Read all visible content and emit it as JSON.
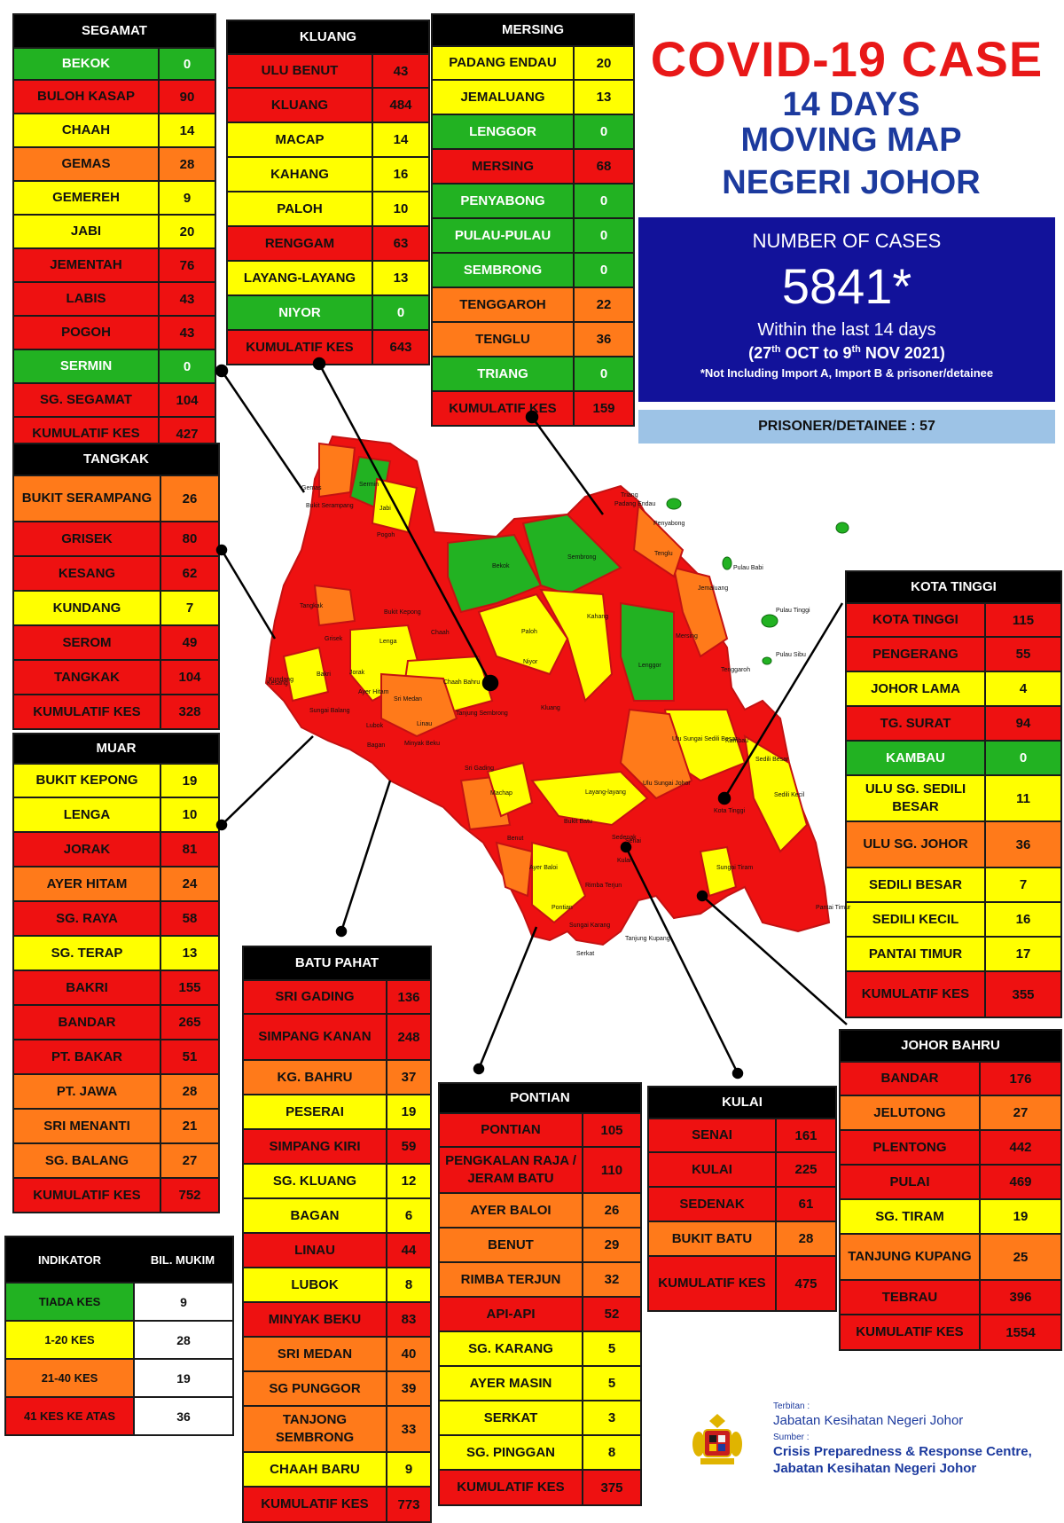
{
  "header": {
    "title": "COVID-19 CASE",
    "line1": "14 DAYS",
    "line2": "MOVING MAP",
    "line3": "NEGERI JOHOR"
  },
  "cases": {
    "label": "NUMBER OF CASES",
    "total": "5841*",
    "within": "Within the last 14 days",
    "range_open": "(27",
    "range_th1": "th",
    "range_mid": " OCT to 9",
    "range_th2": "th",
    "range_close": " NOV 2021)",
    "note": "*Not Including Import A, Import B & prisoner/detainee"
  },
  "prisoner": "PRISONER/DETAINEE : 57",
  "colors": {
    "green": "#22b222",
    "yellow": "#ffff00",
    "orange": "#ff7a1a",
    "red": "#ee1111",
    "title": "#e81818",
    "navy": "#1c3a9e",
    "box": "#12129a"
  },
  "districts": {
    "segamat": {
      "name": "SEGAMAT",
      "rows": [
        {
          "n": "BEKOK",
          "v": "0",
          "c": "green"
        },
        {
          "n": "BULOH KASAP",
          "v": "90",
          "c": "red"
        },
        {
          "n": "CHAAH",
          "v": "14",
          "c": "yellow"
        },
        {
          "n": "GEMAS",
          "v": "28",
          "c": "orange"
        },
        {
          "n": "GEMEREH",
          "v": "9",
          "c": "yellow"
        },
        {
          "n": "JABI",
          "v": "20",
          "c": "yellow"
        },
        {
          "n": "JEMENTAH",
          "v": "76",
          "c": "red"
        },
        {
          "n": "LABIS",
          "v": "43",
          "c": "red"
        },
        {
          "n": "POGOH",
          "v": "43",
          "c": "red"
        },
        {
          "n": "SERMIN",
          "v": "0",
          "c": "green"
        },
        {
          "n": "SG. SEGAMAT",
          "v": "104",
          "c": "red"
        },
        {
          "n": "KUMULATIF KES",
          "v": "427",
          "c": "red"
        }
      ]
    },
    "kluang": {
      "name": "KLUANG",
      "rows": [
        {
          "n": "ULU BENUT",
          "v": "43",
          "c": "red"
        },
        {
          "n": "KLUANG",
          "v": "484",
          "c": "red"
        },
        {
          "n": "MACAP",
          "v": "14",
          "c": "yellow"
        },
        {
          "n": "KAHANG",
          "v": "16",
          "c": "yellow"
        },
        {
          "n": "PALOH",
          "v": "10",
          "c": "yellow"
        },
        {
          "n": "RENGGAM",
          "v": "63",
          "c": "red"
        },
        {
          "n": "LAYANG-LAYANG",
          "v": "13",
          "c": "yellow"
        },
        {
          "n": "NIYOR",
          "v": "0",
          "c": "green"
        },
        {
          "n": "KUMULATIF KES",
          "v": "643",
          "c": "red"
        }
      ]
    },
    "mersing": {
      "name": "MERSING",
      "rows": [
        {
          "n": "PADANG ENDAU",
          "v": "20",
          "c": "yellow"
        },
        {
          "n": "JEMALUANG",
          "v": "13",
          "c": "yellow"
        },
        {
          "n": "LENGGOR",
          "v": "0",
          "c": "green"
        },
        {
          "n": "MERSING",
          "v": "68",
          "c": "red"
        },
        {
          "n": "PENYABONG",
          "v": "0",
          "c": "green"
        },
        {
          "n": "PULAU-PULAU",
          "v": "0",
          "c": "green"
        },
        {
          "n": "SEMBRONG",
          "v": "0",
          "c": "green"
        },
        {
          "n": "TENGGAROH",
          "v": "22",
          "c": "orange"
        },
        {
          "n": "TENGLU",
          "v": "36",
          "c": "orange"
        },
        {
          "n": "TRIANG",
          "v": "0",
          "c": "green"
        },
        {
          "n": "KUMULATIF KES",
          "v": "159",
          "c": "red"
        }
      ]
    },
    "tangkak": {
      "name": "TANGKAK",
      "rows": [
        {
          "n": "BUKIT SERAMPANG",
          "v": "26",
          "c": "orange"
        },
        {
          "n": "GRISEK",
          "v": "80",
          "c": "red"
        },
        {
          "n": "KESANG",
          "v": "62",
          "c": "red"
        },
        {
          "n": "KUNDANG",
          "v": "7",
          "c": "yellow"
        },
        {
          "n": "SEROM",
          "v": "49",
          "c": "red"
        },
        {
          "n": "TANGKAK",
          "v": "104",
          "c": "red"
        },
        {
          "n": "KUMULATIF KES",
          "v": "328",
          "c": "red"
        }
      ]
    },
    "muar": {
      "name": "MUAR",
      "rows": [
        {
          "n": "BUKIT KEPONG",
          "v": "19",
          "c": "yellow"
        },
        {
          "n": "LENGA",
          "v": "10",
          "c": "yellow"
        },
        {
          "n": "JORAK",
          "v": "81",
          "c": "red"
        },
        {
          "n": "AYER HITAM",
          "v": "24",
          "c": "orange"
        },
        {
          "n": "SG. RAYA",
          "v": "58",
          "c": "red"
        },
        {
          "n": "SG. TERAP",
          "v": "13",
          "c": "yellow"
        },
        {
          "n": "BAKRI",
          "v": "155",
          "c": "red"
        },
        {
          "n": "BANDAR",
          "v": "265",
          "c": "red"
        },
        {
          "n": "PT. BAKAR",
          "v": "51",
          "c": "red"
        },
        {
          "n": "PT. JAWA",
          "v": "28",
          "c": "orange"
        },
        {
          "n": "SRI MENANTI",
          "v": "21",
          "c": "orange"
        },
        {
          "n": "SG. BALANG",
          "v": "27",
          "c": "orange"
        },
        {
          "n": "KUMULATIF KES",
          "v": "752",
          "c": "red"
        }
      ]
    },
    "kotatinggi": {
      "name": "KOTA TINGGI",
      "rows": [
        {
          "n": "KOTA TINGGI",
          "v": "115",
          "c": "red"
        },
        {
          "n": "PENGERANG",
          "v": "55",
          "c": "red"
        },
        {
          "n": "JOHOR LAMA",
          "v": "4",
          "c": "yellow"
        },
        {
          "n": "TG. SURAT",
          "v": "94",
          "c": "red"
        },
        {
          "n": "KAMBAU",
          "v": "0",
          "c": "green"
        },
        {
          "n": "ULU SG. SEDILI BESAR",
          "v": "11",
          "c": "yellow"
        },
        {
          "n": "ULU  SG. JOHOR",
          "v": "36",
          "c": "orange"
        },
        {
          "n": "SEDILI BESAR",
          "v": "7",
          "c": "yellow"
        },
        {
          "n": "SEDILI KECIL",
          "v": "16",
          "c": "yellow"
        },
        {
          "n": "PANTAI TIMUR",
          "v": "17",
          "c": "yellow"
        },
        {
          "n": "KUMULATIF KES",
          "v": "355",
          "c": "red"
        }
      ]
    },
    "batupahat": {
      "name": "BATU PAHAT",
      "rows": [
        {
          "n": "SRI GADING",
          "v": "136",
          "c": "red"
        },
        {
          "n": "SIMPANG KANAN",
          "v": "248",
          "c": "red"
        },
        {
          "n": "KG. BAHRU",
          "v": "37",
          "c": "orange"
        },
        {
          "n": "PESERAI",
          "v": "19",
          "c": "yellow"
        },
        {
          "n": "SIMPANG KIRI",
          "v": "59",
          "c": "red"
        },
        {
          "n": "SG. KLUANG",
          "v": "12",
          "c": "yellow"
        },
        {
          "n": "BAGAN",
          "v": "6",
          "c": "yellow"
        },
        {
          "n": "LINAU",
          "v": "44",
          "c": "red"
        },
        {
          "n": "LUBOK",
          "v": "8",
          "c": "yellow"
        },
        {
          "n": "MINYAK BEKU",
          "v": "83",
          "c": "red"
        },
        {
          "n": "SRI MEDAN",
          "v": "40",
          "c": "orange"
        },
        {
          "n": "SG PUNGGOR",
          "v": "39",
          "c": "orange"
        },
        {
          "n": "TANJONG SEMBRONG",
          "v": "33",
          "c": "orange"
        },
        {
          "n": "CHAAH BARU",
          "v": "9",
          "c": "yellow"
        },
        {
          "n": "KUMULATIF KES",
          "v": "773",
          "c": "red"
        }
      ]
    },
    "pontian": {
      "name": "PONTIAN",
      "rows": [
        {
          "n": "PONTIAN",
          "v": "105",
          "c": "red"
        },
        {
          "n": "PENGKALAN RAJA / JERAM BATU",
          "v": "110",
          "c": "red"
        },
        {
          "n": "AYER BALOI",
          "v": "26",
          "c": "orange"
        },
        {
          "n": "BENUT",
          "v": "29",
          "c": "orange"
        },
        {
          "n": "RIMBA TERJUN",
          "v": "32",
          "c": "orange"
        },
        {
          "n": "API-API",
          "v": "52",
          "c": "red"
        },
        {
          "n": "SG. KARANG",
          "v": "5",
          "c": "yellow"
        },
        {
          "n": "AYER MASIN",
          "v": "5",
          "c": "yellow"
        },
        {
          "n": "SERKAT",
          "v": "3",
          "c": "yellow"
        },
        {
          "n": "SG. PINGGAN",
          "v": "8",
          "c": "yellow"
        },
        {
          "n": "KUMULATIF KES",
          "v": "375",
          "c": "red"
        }
      ]
    },
    "kulai": {
      "name": "KULAI",
      "rows": [
        {
          "n": "SENAI",
          "v": "161",
          "c": "red"
        },
        {
          "n": "KULAI",
          "v": "225",
          "c": "red"
        },
        {
          "n": "SEDENAK",
          "v": "61",
          "c": "red"
        },
        {
          "n": "BUKIT BATU",
          "v": "28",
          "c": "orange"
        },
        {
          "n": "KUMULATIF KES",
          "v": "475",
          "c": "red"
        }
      ]
    },
    "johorbahru": {
      "name": "JOHOR BAHRU",
      "rows": [
        {
          "n": "BANDAR",
          "v": "176",
          "c": "red"
        },
        {
          "n": "JELUTONG",
          "v": "27",
          "c": "orange"
        },
        {
          "n": "PLENTONG",
          "v": "442",
          "c": "red"
        },
        {
          "n": "PULAI",
          "v": "469",
          "c": "red"
        },
        {
          "n": "SG. TIRAM",
          "v": "19",
          "c": "yellow"
        },
        {
          "n": "TANJUNG KUPANG",
          "v": "25",
          "c": "orange"
        },
        {
          "n": "TEBRAU",
          "v": "396",
          "c": "red"
        },
        {
          "n": "KUMULATIF KES",
          "v": "1554",
          "c": "red"
        }
      ]
    }
  },
  "indicator": {
    "h1": "INDIKATOR",
    "h2": "BIL. MUKIM",
    "rows": [
      {
        "n": "TIADA KES",
        "v": "9",
        "c": "green"
      },
      {
        "n": "1-20 KES",
        "v": "28",
        "c": "yellow"
      },
      {
        "n": "21-40 KES",
        "v": "19",
        "c": "orange"
      },
      {
        "n": "41 KES KE ATAS",
        "v": "36",
        "c": "red"
      }
    ]
  },
  "footer": {
    "terbitan_label": "Terbitan :",
    "terbitan": "Jabatan Kesihatan Negeri Johor",
    "sumber_label": "Sumber :",
    "sumber1": "Crisis Preparedness & Response Centre,",
    "sumber2": "Jabatan Kesihatan Negeri Johor"
  },
  "map_labels": [
    "Gemas",
    "Bukit Serampang",
    "Sermin",
    "Jabi",
    "Pogoh",
    "Bekok",
    "Sembrong",
    "Tenglu",
    "Triang",
    "Penyabong",
    "Pulau Babi",
    "Pulau Tinggi",
    "Pulau Sibu",
    "Jemaluang",
    "Tenggaroh",
    "Mersing",
    "Lenggor",
    "Kahang",
    "Paloh",
    "Niyor",
    "Chaah",
    "Lenga",
    "Bukit Kepong",
    "Tangkak",
    "Grisek",
    "Kundang",
    "Kesang",
    "Jorak",
    "Sri Medan",
    "Chaah Bahru",
    "Tanjung Sembrong",
    "Linau",
    "Kluang",
    "Machap",
    "Sri Gading",
    "Layang-layang",
    "Ulu Sungai Sedili Besar",
    "Kambau",
    "Sedili Besar",
    "Ulu Sungai Johor",
    "Sedili Kecil",
    "Kota Tinggi",
    "Sedenak",
    "Bukit Batu",
    "Senai",
    "Kulai",
    "Pontian",
    "Rimba Terjun",
    "Ayer Baloi",
    "Benut",
    "Sungai Tiram",
    "Pantai Timur",
    "Tanjung Kupang",
    "Serkat",
    "Ayer Hitam",
    "Bakri",
    "Sungai Balang",
    "Lubok",
    "Bagan",
    "Minyak Beku",
    "Sungai Karang",
    "Padang Endau"
  ]
}
